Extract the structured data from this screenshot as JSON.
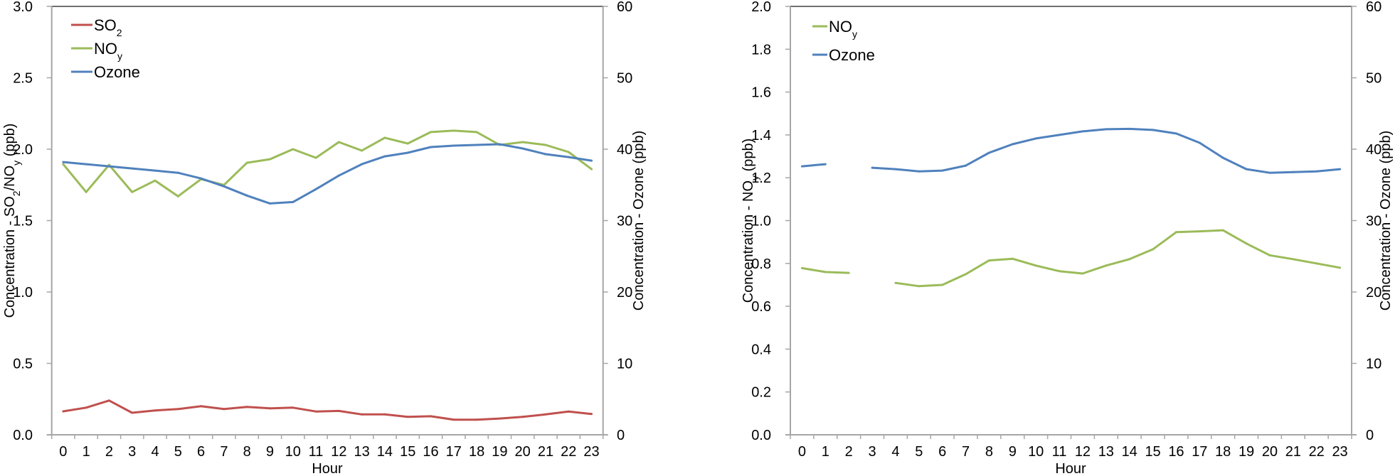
{
  "colors": {
    "so2": "#C0504D",
    "noy": "#9BBB59",
    "ozone": "#4F81BD",
    "axis": "#A6A6A6",
    "frame": "#404040"
  },
  "chart_data": [
    {
      "type": "line",
      "id": "left",
      "title": "",
      "xlabel": "Hour",
      "ylabel": "Concentration - SO2/NOy (ppb)",
      "ylabel_parts": {
        "pre": "Concentration - SO",
        "sub1": "2",
        "mid": "/NO",
        "sub2": "y",
        "post": " (ppb)"
      },
      "y2label": "Concentration - Ozone (ppb)",
      "x": [
        0,
        1,
        2,
        3,
        4,
        5,
        6,
        7,
        8,
        9,
        10,
        11,
        12,
        13,
        14,
        15,
        16,
        17,
        18,
        19,
        20,
        21,
        22,
        23
      ],
      "ylim": [
        0,
        3.0
      ],
      "yticks": [
        "0.0",
        "0.5",
        "1.0",
        "1.5",
        "2.0",
        "2.5",
        "3.0"
      ],
      "ytick_values": [
        0,
        0.5,
        1.0,
        1.5,
        2.0,
        2.5,
        3.0
      ],
      "y2lim": [
        0,
        60
      ],
      "y2ticks": [
        "0",
        "10",
        "20",
        "30",
        "40",
        "50",
        "60"
      ],
      "y2tick_values": [
        0,
        10,
        20,
        30,
        40,
        50,
        60
      ],
      "grid": false,
      "legend_position": "top-left",
      "series": [
        {
          "name": "SO2",
          "label_main": "SO",
          "label_sub": "2",
          "color_key": "so2",
          "axis": "left",
          "values": [
            0.164,
            0.19,
            0.24,
            0.154,
            0.17,
            0.18,
            0.2,
            0.18,
            0.195,
            0.185,
            0.19,
            0.163,
            0.167,
            0.143,
            0.143,
            0.126,
            0.13,
            0.106,
            0.106,
            0.114,
            0.126,
            0.143,
            0.163,
            0.146
          ]
        },
        {
          "name": "NOy",
          "label_main": "NO",
          "label_sub": "y",
          "color_key": "noy",
          "axis": "left",
          "values": [
            1.895,
            1.7,
            1.89,
            1.7,
            1.78,
            1.67,
            1.79,
            1.75,
            1.905,
            1.93,
            2.0,
            1.94,
            2.05,
            1.99,
            2.08,
            2.04,
            2.12,
            2.13,
            2.12,
            2.03,
            2.05,
            2.03,
            1.98,
            1.86
          ]
        },
        {
          "name": "Ozone",
          "label_main": "Ozone",
          "label_sub": "",
          "color_key": "ozone",
          "axis": "right",
          "values": [
            38.2,
            37.9,
            37.6,
            37.3,
            37.0,
            36.7,
            35.9,
            34.8,
            33.5,
            32.4,
            32.6,
            34.4,
            36.3,
            37.9,
            39.0,
            39.5,
            40.3,
            40.5,
            40.6,
            40.7,
            40.1,
            39.3,
            38.9,
            38.4
          ]
        }
      ]
    },
    {
      "type": "line",
      "id": "right",
      "title": "",
      "xlabel": "Hour",
      "ylabel": "Concentration - NOy (ppb)",
      "ylabel_parts": {
        "pre": "Concentration - NO",
        "sub1": "y",
        "mid": "",
        "sub2": "",
        "post": " (ppb)"
      },
      "y2label": "Concentration - Ozone (ppb)",
      "x": [
        0,
        1,
        2,
        3,
        4,
        5,
        6,
        7,
        8,
        9,
        10,
        11,
        12,
        13,
        14,
        15,
        16,
        17,
        18,
        19,
        20,
        21,
        22,
        23
      ],
      "ylim": [
        0,
        2.0
      ],
      "yticks": [
        "0.0",
        "0.2",
        "0.4",
        "0.6",
        "0.8",
        "1.0",
        "1.2",
        "1.4",
        "1.6",
        "1.8",
        "2.0"
      ],
      "ytick_values": [
        0,
        0.2,
        0.4,
        0.6,
        0.8,
        1.0,
        1.2,
        1.4,
        1.6,
        1.8,
        2.0
      ],
      "y2lim": [
        0,
        60
      ],
      "y2ticks": [
        "0",
        "10",
        "20",
        "30",
        "40",
        "50",
        "60"
      ],
      "y2tick_values": [
        0,
        10,
        20,
        30,
        40,
        50,
        60
      ],
      "grid": false,
      "legend_position": "top-left",
      "series": [
        {
          "name": "NOy",
          "label_main": "NO",
          "label_sub": "y",
          "color_key": "noy",
          "axis": "left",
          "values": [
            0.778,
            0.76,
            0.756,
            null,
            0.709,
            0.694,
            0.7,
            0.75,
            0.814,
            0.822,
            0.79,
            0.764,
            0.753,
            0.79,
            0.82,
            0.866,
            0.946,
            0.95,
            0.955,
            0.893,
            0.838,
            0.82,
            0.8,
            0.78
          ]
        },
        {
          "name": "Ozone",
          "label_main": "Ozone",
          "label_sub": "",
          "color_key": "ozone",
          "axis": "right",
          "values": [
            37.6,
            37.9,
            null,
            37.4,
            37.2,
            36.9,
            37.0,
            37.7,
            39.5,
            40.7,
            41.5,
            42.0,
            42.5,
            42.8,
            42.85,
            42.7,
            42.2,
            40.9,
            38.8,
            37.2,
            36.7,
            36.8,
            36.9,
            37.2
          ]
        }
      ]
    }
  ]
}
